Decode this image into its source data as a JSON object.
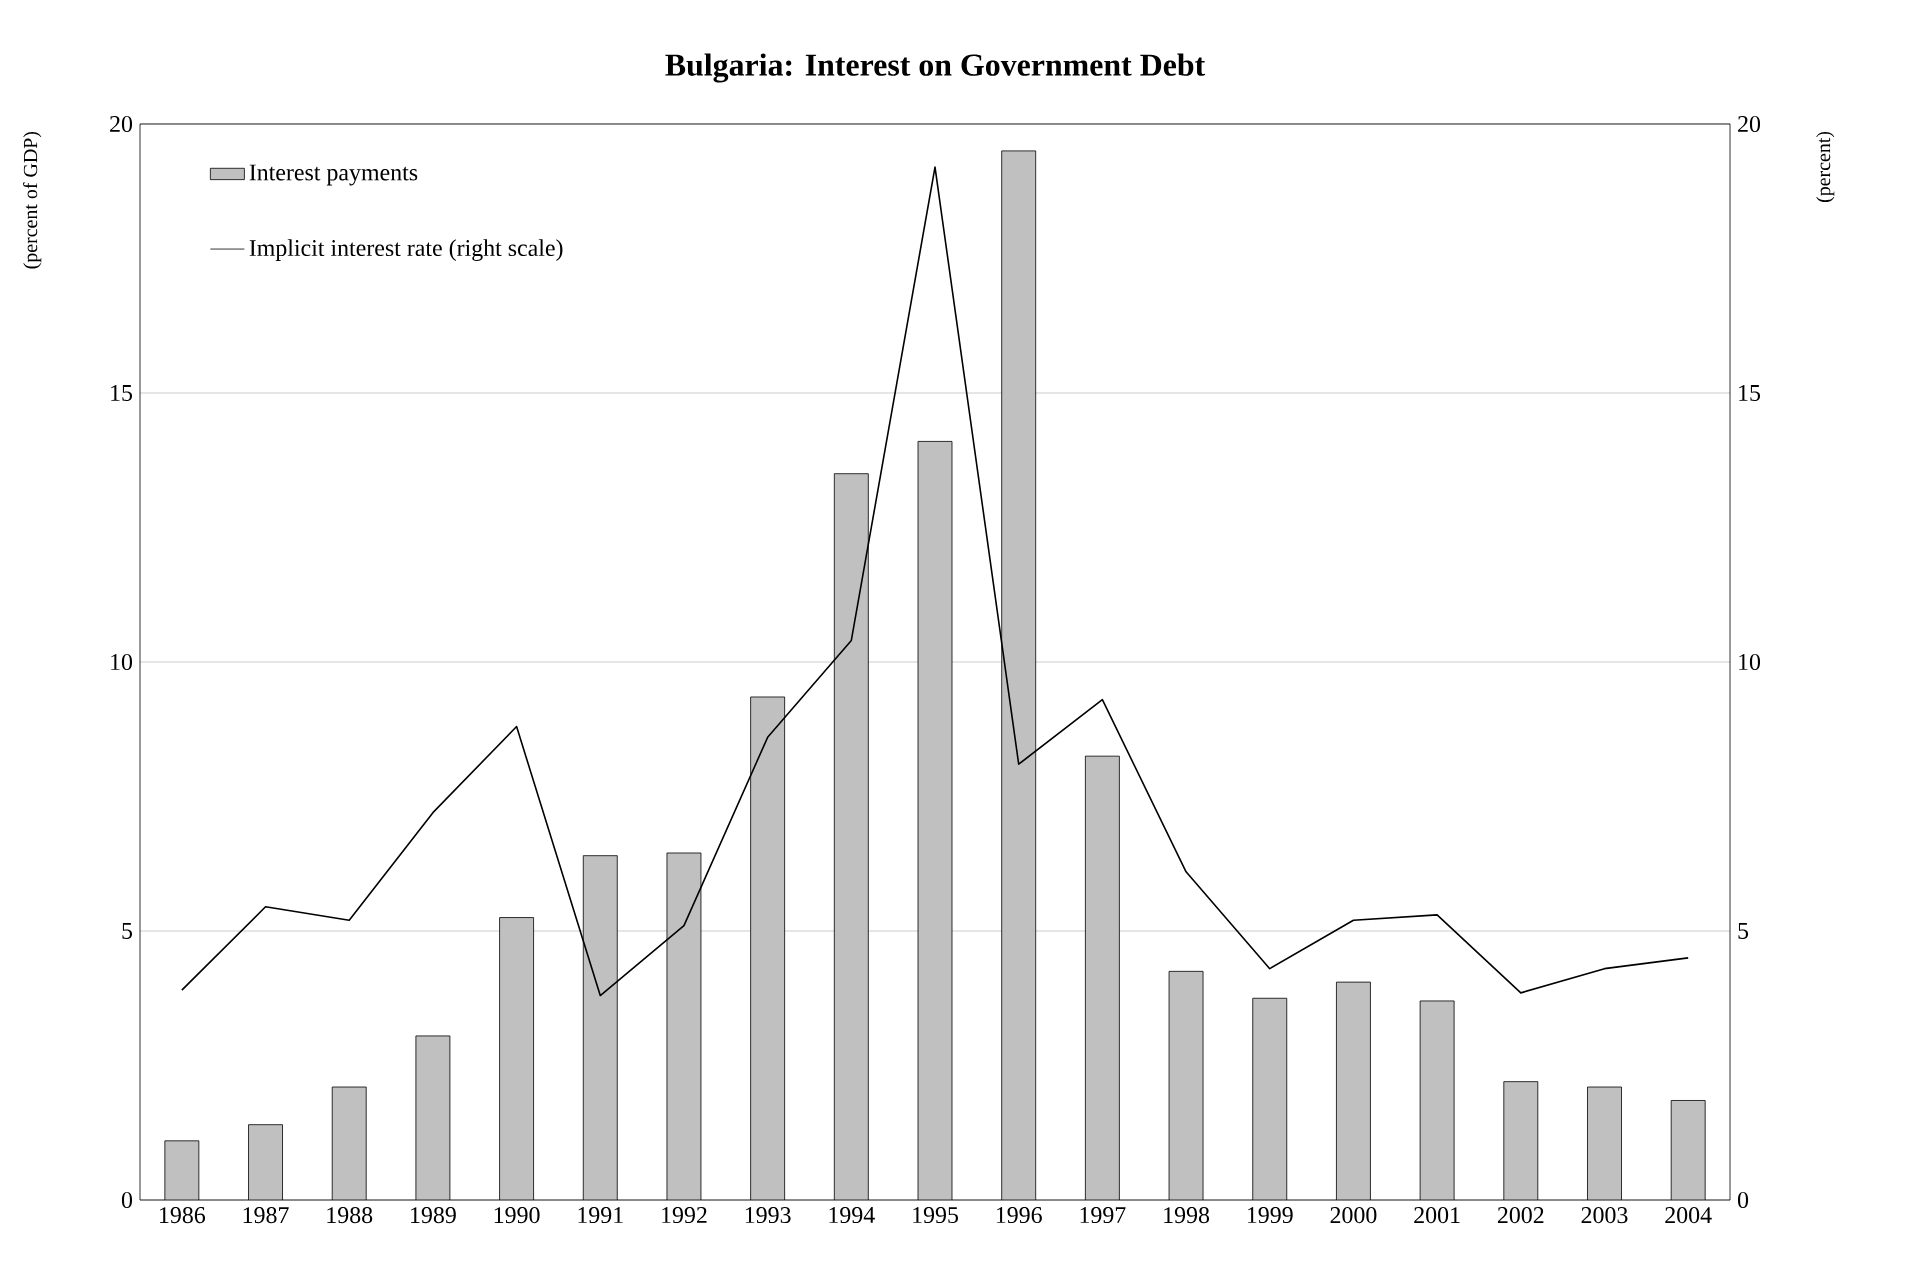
{
  "chart_data": {
    "type": "bar",
    "title": "Bulgaria: Interest on Government Debt",
    "ylabel": "(percent of GDP)",
    "y2label": "(percent)",
    "categories": [
      "1986",
      "1987",
      "1988",
      "1989",
      "1990",
      "1991",
      "1992",
      "1993",
      "1994",
      "1995",
      "1996",
      "1997",
      "1998",
      "1999",
      "2000",
      "2001",
      "2002",
      "2003",
      "2004"
    ],
    "series": [
      {
        "name": "Interest payments",
        "color": "#c0c0c0",
        "values": [
          1.1,
          1.4,
          2.1,
          3.05,
          5.25,
          6.4,
          6.45,
          9.35,
          13.5,
          14.1,
          19.5,
          8.25,
          4.25,
          3.75,
          4.05,
          3.7,
          2.2,
          2.1,
          1.85
        ]
      },
      {
        "name": "Implicit interest rate (right scale)",
        "type": "line",
        "axis": "y2",
        "color": "#000000",
        "values": [
          3.9,
          5.45,
          5.2,
          7.2,
          8.8,
          3.8,
          5.1,
          8.6,
          10.4,
          19.2,
          8.1,
          9.3,
          6.1,
          4.3,
          5.2,
          5.3,
          3.85,
          4.3,
          4.5
        ]
      }
    ],
    "ylim": [
      0,
      20
    ],
    "yticks": [
      0,
      5,
      10,
      15,
      20
    ],
    "y2lim": [
      0,
      20
    ],
    "y2ticks": [
      0,
      5,
      10,
      15,
      20
    ],
    "grid": "y",
    "legend": "top left"
  }
}
